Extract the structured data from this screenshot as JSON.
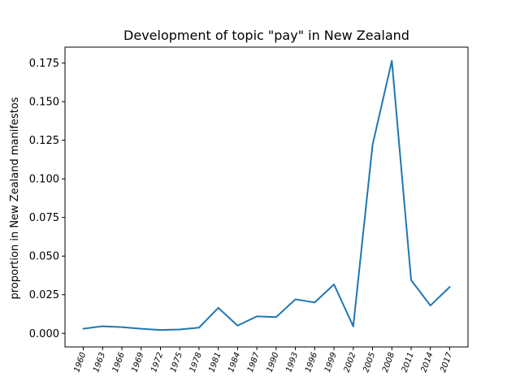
{
  "chart_data": {
    "type": "line",
    "title": "Development of topic \"pay\" in New Zealand",
    "xlabel": "",
    "ylabel": "proportion in New Zealand manifestos",
    "categories": [
      "1960",
      "1963",
      "1966",
      "1969",
      "1972",
      "1975",
      "1978",
      "1981",
      "1984",
      "1987",
      "1990",
      "1993",
      "1996",
      "1999",
      "2002",
      "2005",
      "2008",
      "2011",
      "2014",
      "2017"
    ],
    "series": [
      {
        "color": "#1f77b4",
        "values": [
          0.003,
          0.0046,
          0.004,
          0.003,
          0.0022,
          0.0025,
          0.0037,
          0.0165,
          0.005,
          0.011,
          0.0105,
          0.022,
          0.02,
          0.0317,
          0.0045,
          0.122,
          0.1765,
          0.0345,
          0.018,
          0.03
        ]
      }
    ],
    "ylim": [
      -0.0088,
      0.1853
    ],
    "yticks": [
      0.0,
      0.025,
      0.05,
      0.075,
      0.1,
      0.125,
      0.15,
      0.175
    ],
    "ytick_labels": [
      "0.000",
      "0.025",
      "0.050",
      "0.075",
      "0.100",
      "0.125",
      "0.150",
      "0.175"
    ],
    "grid": false,
    "legend": "none"
  }
}
